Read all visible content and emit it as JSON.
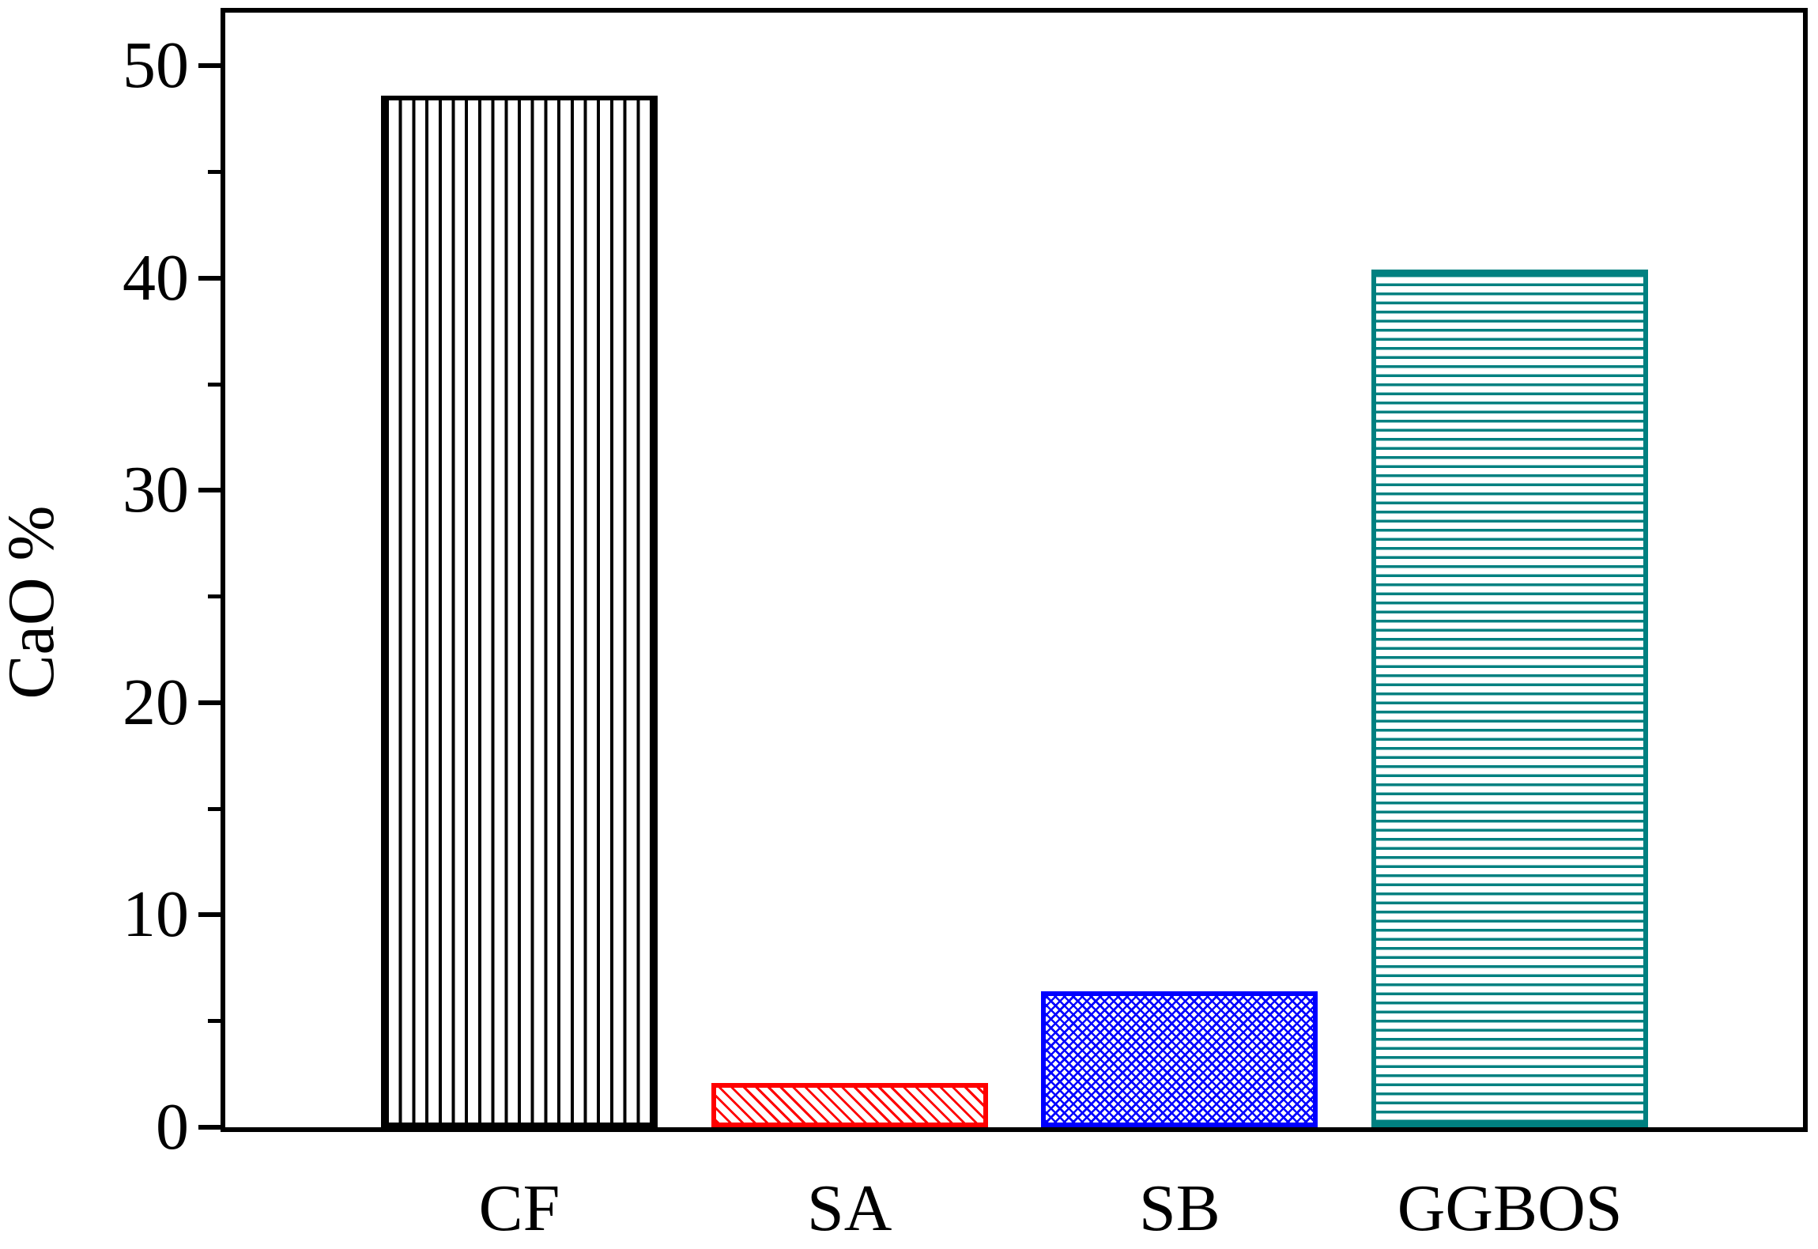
{
  "figure": {
    "background": "#ffffff",
    "axis_color": "#000000"
  },
  "chart_data": {
    "type": "bar",
    "title": "",
    "xlabel": "",
    "ylabel": "CaO %",
    "categories": [
      "CF",
      "SA",
      "SB",
      "GGBOS"
    ],
    "values": [
      48.6,
      2.1,
      6.4,
      40.4
    ],
    "bars": [
      {
        "label": "CF",
        "value": 48.6,
        "color": "#000000",
        "hatch": "vertical"
      },
      {
        "label": "SA",
        "value": 2.1,
        "color": "#ff0000",
        "hatch": "diagonal-down"
      },
      {
        "label": "SB",
        "value": 6.4,
        "color": "#0000ff",
        "hatch": "crosshatch"
      },
      {
        "label": "GGBOS",
        "value": 40.4,
        "color": "#008080",
        "hatch": "horizontal"
      }
    ],
    "ylim": [
      0,
      52.5
    ],
    "yticks": [
      0,
      10,
      20,
      30,
      40,
      50
    ],
    "minor_yticks": [
      5,
      15,
      25,
      35,
      45
    ],
    "grid": false,
    "legend": null
  }
}
